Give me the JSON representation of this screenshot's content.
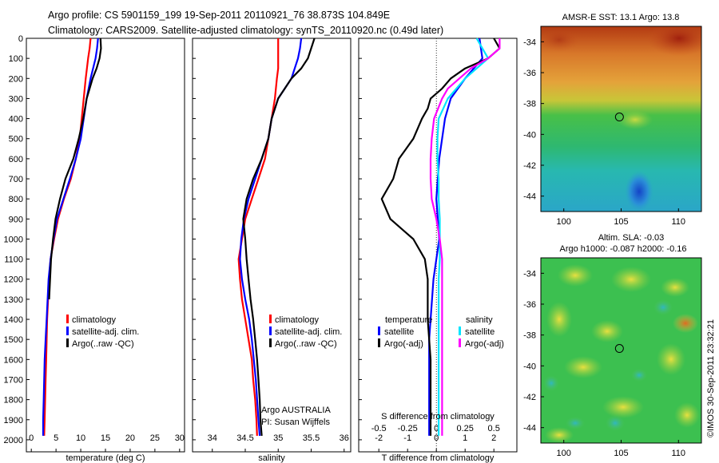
{
  "header": {
    "line1": "Argo profile: CS 5901159_199 19-Sep-2011 20110921_76 38.873S 104.849E",
    "line2": "Climatology: CARS2009. Satellite-adjusted climatology: synTS_20110920.nc (0.49d later)"
  },
  "colors": {
    "climatology": "#ff0000",
    "satellite": "#0000ff",
    "argo": "#000000",
    "salinity_satellite": "#00e5ff",
    "salinity_argo": "#ff00ff"
  },
  "chart_data": [
    {
      "type": "line",
      "name": "temperature-panel",
      "xlabel": "temperature (deg C)",
      "xlim": [
        -1,
        31
      ],
      "xticks": [
        "0",
        "5",
        "10",
        "15",
        "20",
        "25",
        "30"
      ],
      "ylim": [
        0,
        2060
      ],
      "yticks": [
        "0",
        "100",
        "200",
        "300",
        "400",
        "500",
        "600",
        "700",
        "800",
        "900",
        "1000",
        "1100",
        "1200",
        "1300",
        "1400",
        "1500",
        "1600",
        "1700",
        "1800",
        "1900",
        "2000"
      ],
      "legend": [
        "climatology",
        "satellite-adj. clim.",
        "Argo(..raw -QC)"
      ],
      "series": [
        {
          "name": "climatology",
          "depth": [
            0,
            50,
            100,
            200,
            300,
            400,
            500,
            600,
            700,
            800,
            900,
            1000,
            1100,
            1200,
            1300,
            1400,
            1500,
            1600,
            1700,
            1800,
            1900,
            1980
          ],
          "values": [
            12,
            11.8,
            11.5,
            11.0,
            10.6,
            10.2,
            9.8,
            9.0,
            8.0,
            6.6,
            5.4,
            4.6,
            3.9,
            3.6,
            3.4,
            3.2,
            3.1,
            3.0,
            2.9,
            2.8,
            2.7,
            2.6
          ]
        },
        {
          "name": "satellite-adj. clim.",
          "depth": [
            0,
            50,
            100,
            200,
            300,
            400,
            500,
            600,
            700,
            800,
            900,
            1000,
            1100,
            1200,
            1300,
            1400,
            1500,
            1600,
            1700,
            1800,
            1900,
            1980
          ],
          "values": [
            13.5,
            13.3,
            13.0,
            12.0,
            11.2,
            10.6,
            10.0,
            9.0,
            7.8,
            6.5,
            5.2,
            4.5,
            3.9,
            3.5,
            3.3,
            3.1,
            2.9,
            2.7,
            2.6,
            2.5,
            2.4,
            2.4
          ]
        },
        {
          "name": "Argo(..raw -QC)",
          "depth": [
            0,
            50,
            100,
            150,
            200,
            250,
            300,
            400,
            500,
            600,
            700,
            800,
            900,
            1000,
            1100,
            1200,
            1300
          ],
          "values": [
            14,
            14.1,
            13.8,
            13.2,
            12.4,
            11.8,
            11.2,
            10.5,
            9.6,
            8.5,
            6.9,
            5.8,
            4.9,
            4.4,
            4.0,
            3.8,
            3.6
          ]
        }
      ]
    },
    {
      "type": "line",
      "name": "salinity-panel",
      "xlabel": "salinity",
      "xlim": [
        33.7,
        36.1
      ],
      "xticks": [
        "34",
        "34.5",
        "35",
        "35.5",
        "36"
      ],
      "ylim": [
        0,
        2060
      ],
      "legend": [
        "climatology",
        "satellite-adj. clim.",
        "Argo(..raw -QC)"
      ],
      "annotation": [
        "Argo AUSTRALIA",
        "PI: Susan Wijffels"
      ],
      "series": [
        {
          "name": "climatology",
          "depth": [
            0,
            50,
            100,
            150,
            200,
            300,
            400,
            500,
            600,
            700,
            800,
            900,
            1000,
            1100,
            1200,
            1300,
            1400,
            1500,
            1600,
            1700,
            1800,
            1900,
            1980
          ],
          "values": [
            35.0,
            35.0,
            35.0,
            35.0,
            34.98,
            34.95,
            34.9,
            34.85,
            34.8,
            34.7,
            34.6,
            34.5,
            34.45,
            34.4,
            34.42,
            34.45,
            34.5,
            34.55,
            34.6,
            34.62,
            34.65,
            34.67,
            34.68
          ]
        },
        {
          "name": "satellite-adj. clim.",
          "depth": [
            0,
            50,
            100,
            150,
            200,
            250,
            300,
            400,
            500,
            600,
            700,
            800,
            900,
            1000,
            1100,
            1200,
            1300,
            1400,
            1500,
            1600,
            1700,
            1800,
            1900,
            1980
          ],
          "values": [
            35.35,
            35.33,
            35.3,
            35.25,
            35.2,
            35.1,
            35.0,
            34.9,
            34.85,
            34.75,
            34.65,
            34.55,
            34.48,
            34.44,
            34.42,
            34.45,
            34.5,
            34.56,
            34.6,
            34.63,
            34.66,
            34.68,
            34.7,
            34.72
          ]
        },
        {
          "name": "Argo(..raw -QC)",
          "depth": [
            0,
            50,
            100,
            150,
            200,
            250,
            300,
            350,
            400,
            500,
            600,
            700,
            800,
            900,
            1000,
            1100,
            1200,
            1300,
            1400,
            1500,
            1600,
            1700,
            1800,
            1900,
            1980
          ],
          "values": [
            35.55,
            35.5,
            35.45,
            35.35,
            35.2,
            35.1,
            35.0,
            34.95,
            34.9,
            34.85,
            34.75,
            34.62,
            34.52,
            34.47,
            34.5,
            34.52,
            34.55,
            34.58,
            34.62,
            34.65,
            34.68,
            34.7,
            34.72,
            34.73,
            34.75
          ]
        }
      ]
    },
    {
      "type": "line",
      "name": "difference-panel",
      "xlabel": "T difference from climatology",
      "xlim": [
        -2.7,
        2.8
      ],
      "xticks": [
        "-2",
        "-1",
        "0",
        "1",
        "2"
      ],
      "top_axis_label": "S difference from climatology",
      "top_xticks": [
        "-0.5",
        "-0.25",
        "0",
        "0.25",
        "0.5"
      ],
      "ylim": [
        0,
        2060
      ],
      "legend_headers": [
        "temperature",
        "salinity"
      ],
      "legend": [
        "satellite",
        "Argo(-adj)",
        "satellite",
        "Argo(-adj)"
      ],
      "series": [
        {
          "name": "temperature satellite",
          "depth": [
            0,
            100,
            200,
            300,
            400,
            500,
            600,
            700,
            800,
            900,
            1000,
            1100,
            1200,
            1300,
            1400,
            1500,
            1600,
            1700,
            1800,
            1900,
            1980
          ],
          "values": [
            1.5,
            1.6,
            1.0,
            0.5,
            0.3,
            0.2,
            0.1,
            0.05,
            0.0,
            0.05,
            0.1,
            0.0,
            -0.1,
            -0.15,
            -0.2,
            -0.25,
            -0.25,
            -0.25,
            -0.25,
            -0.25,
            -0.25
          ]
        },
        {
          "name": "temperature Argo(-adj)",
          "depth": [
            0,
            50,
            100,
            150,
            200,
            250,
            300,
            350,
            400,
            500,
            600,
            700,
            800,
            900,
            1000,
            1100,
            1200,
            1300,
            1400,
            1500,
            1600,
            1700,
            1800,
            1900,
            1980
          ],
          "values": [
            2.0,
            2.2,
            1.8,
            1.0,
            0.5,
            0.2,
            -0.2,
            -0.3,
            -0.5,
            -0.8,
            -1.3,
            -1.5,
            -1.9,
            -1.6,
            -0.8,
            -0.4,
            -0.3,
            -0.3,
            -0.3,
            -0.25,
            -0.2,
            -0.2,
            -0.2,
            -0.2,
            -0.2
          ]
        },
        {
          "name": "salinity satellite",
          "depth": [
            0,
            50,
            100,
            200,
            300,
            400,
            500,
            600,
            700,
            800,
            900,
            1000,
            1100,
            1200,
            1300,
            1400,
            1500,
            1600,
            1700,
            1800,
            1900,
            1980
          ],
          "values": [
            0.35,
            0.4,
            0.45,
            0.25,
            0.1,
            0.02,
            0.01,
            0.01,
            0.02,
            0.02,
            0.03,
            0.03,
            0.03,
            0.02,
            0.02,
            0.02,
            0.02,
            0.02,
            0.02,
            0.02,
            0.02,
            0.02
          ]
        },
        {
          "name": "salinity Argo(-adj)",
          "depth": [
            0,
            50,
            100,
            150,
            200,
            250,
            300,
            400,
            500,
            600,
            700,
            800,
            900,
            1000,
            1100,
            1200,
            1300,
            1400,
            1500,
            1600,
            1700,
            1800,
            1900,
            1980
          ],
          "values": [
            0.55,
            0.55,
            0.45,
            0.3,
            0.2,
            0.1,
            0.05,
            -0.02,
            -0.04,
            -0.05,
            -0.05,
            -0.04,
            0.0,
            0.03,
            0.05,
            0.05,
            0.05,
            0.05,
            0.05,
            0.05,
            0.05,
            0.05,
            0.05,
            0.05
          ]
        }
      ]
    },
    {
      "type": "heatmap",
      "name": "sst-map",
      "title": "AMSR-E SST: 13.1 Argo: 13.8",
      "xlim": [
        98,
        112
      ],
      "ylim": [
        -45,
        -33
      ],
      "xticks": [
        "100",
        "105",
        "110"
      ],
      "yticks": [
        "-34",
        "-36",
        "-38",
        "-40",
        "-42",
        "-44"
      ]
    },
    {
      "type": "heatmap",
      "name": "sla-map",
      "title_lines": [
        "Altim. SLA: -0.03",
        "Argo h1000: -0.087 h2000: -0.16"
      ],
      "xlim": [
        98,
        112
      ],
      "ylim": [
        -45,
        -33
      ],
      "xticks": [
        "100",
        "105",
        "110"
      ],
      "yticks": [
        "-34",
        "-36",
        "-38",
        "-40",
        "-42",
        "-44"
      ]
    }
  ],
  "footer": {
    "credit": "©IMOS 30-Sep-2011 23:32:21"
  }
}
